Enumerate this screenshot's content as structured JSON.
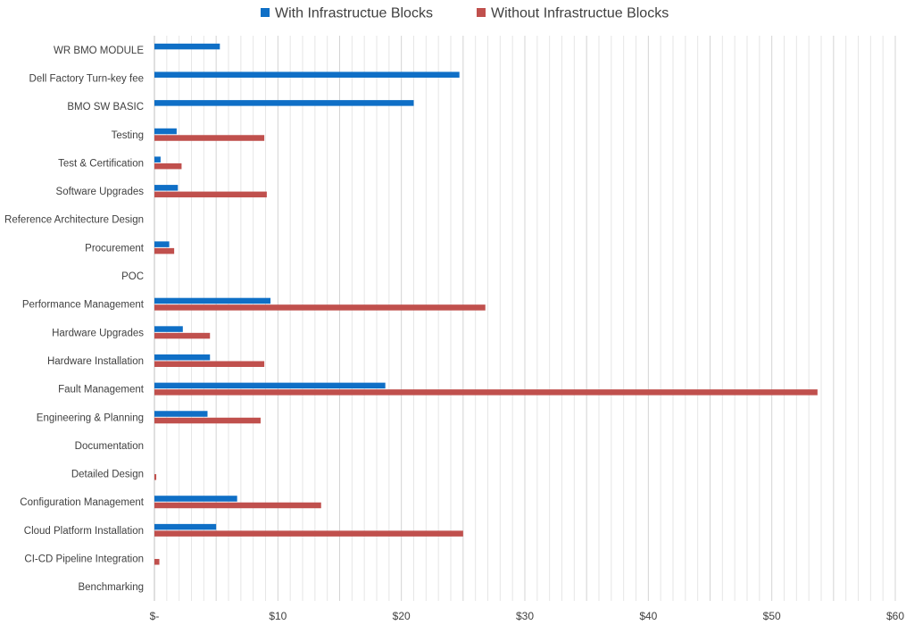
{
  "chart_data": {
    "type": "bar",
    "orientation": "horizontal",
    "title": "",
    "xlabel": "",
    "ylabel": "",
    "legend_position": "top",
    "grid": true,
    "xlim": [
      0,
      60
    ],
    "x_ticks": [
      0,
      5,
      10,
      15,
      20,
      25,
      30,
      35,
      40,
      45,
      50,
      55,
      60
    ],
    "x_tick_labels": [
      "$-",
      "",
      "$10",
      "",
      "$20",
      "",
      "$30",
      "",
      "$40",
      "",
      "$50",
      "",
      "$60"
    ],
    "categories": [
      "WR BMO MODULE",
      "Dell Factory Turn-key fee",
      "BMO SW BASIC",
      "Testing",
      "Test & Certification",
      "Software Upgrades",
      "Reference Architecture Design",
      "Procurement",
      "POC",
      "Performance Management",
      "Hardware Upgrades",
      "Hardware Installation",
      "Fault Management",
      "Engineering & Planning",
      "Documentation",
      "Detailed Design",
      "Configuration Management",
      "Cloud Platform Installation",
      "CI-CD Pipeline Integration",
      "Benchmarking"
    ],
    "series": [
      {
        "name": "With Infrastructue Blocks",
        "color": "#0f6fc6",
        "values": [
          5.3,
          24.7,
          21.0,
          1.8,
          0.5,
          1.9,
          0,
          1.2,
          0,
          9.4,
          2.3,
          4.5,
          18.7,
          4.3,
          0,
          0,
          6.7,
          5.0,
          0,
          0
        ]
      },
      {
        "name": "Without Infrastructue Blocks",
        "color": "#c0504d",
        "values": [
          0,
          0,
          0,
          8.9,
          2.2,
          9.1,
          0,
          1.6,
          0,
          26.8,
          4.5,
          8.9,
          53.7,
          8.6,
          0,
          0.15,
          13.5,
          25.0,
          0.4,
          0
        ]
      }
    ]
  }
}
